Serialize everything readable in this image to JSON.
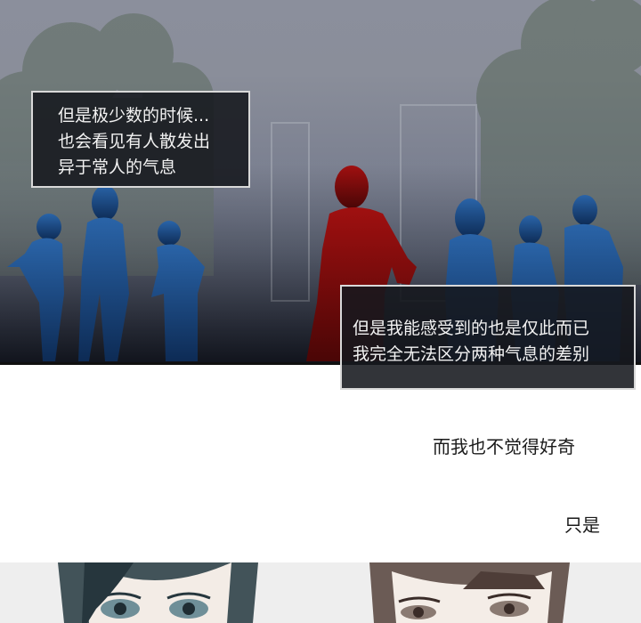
{
  "panels": {
    "top": {
      "caption_1": {
        "lines": [
          "但是极少数的时候...",
          "也会看见有人散发出",
          "异于常人的气息"
        ]
      },
      "caption_2": {
        "lines": [
          "但是我能感受到的也是仅此而已",
          "我完全无法区分两种气息的差别"
        ]
      }
    },
    "middle": {
      "line_1": "而我也不觉得好奇",
      "line_2": "只是"
    }
  },
  "colors": {
    "fog_top": "#8b8f9c",
    "silhouette_blue": "#1b4f8c",
    "silhouette_red": "#8a0d0d",
    "caption_bg": "#16181e"
  }
}
